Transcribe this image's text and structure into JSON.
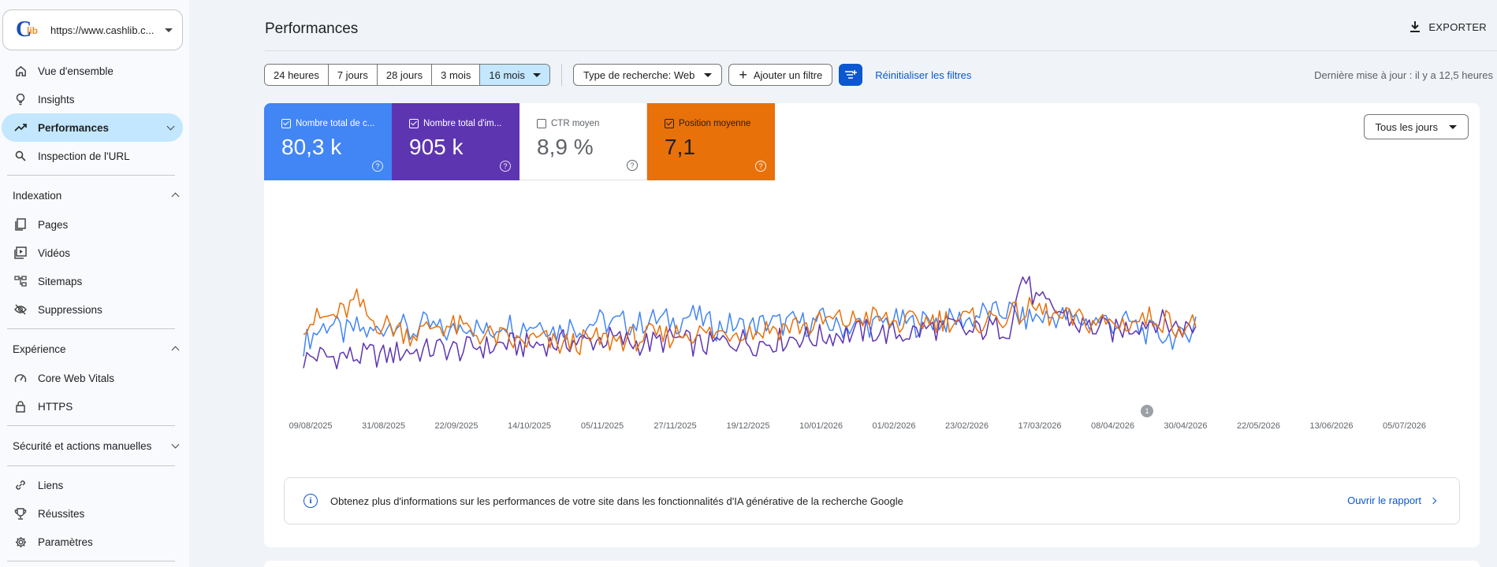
{
  "property": {
    "url": "https://www.cashlib.c...",
    "logo_letter": "C",
    "logo_small": "lib"
  },
  "sidebar": {
    "overview": "Vue d'ensemble",
    "insights": "Insights",
    "performances": "Performances",
    "url_inspection": "Inspection de l'URL",
    "indexing": {
      "title": "Indexation",
      "pages": "Pages",
      "videos": "Vidéos",
      "sitemaps": "Sitemaps",
      "removals": "Suppressions"
    },
    "experience": {
      "title": "Expérience",
      "cwv": "Core Web Vitals",
      "https": "HTTPS"
    },
    "security": "Sécurité et actions manuelles",
    "links": "Liens",
    "achievements": "Réussites",
    "settings": "Paramètres"
  },
  "header": {
    "title": "Performances",
    "export": "EXPORTER"
  },
  "filters": {
    "ranges": [
      "24 heures",
      "7 jours",
      "28 jours",
      "3 mois",
      "16 mois"
    ],
    "selected_range": "16 mois",
    "search_type": "Type de recherche: Web",
    "add_filter": "Ajouter un filtre",
    "reset": "Réinitialiser les filtres",
    "updated": "Dernière mise à jour : il y a 12,5 heures"
  },
  "metrics": [
    {
      "label": "Nombre total de c...",
      "value": "80,3 k",
      "checked": true,
      "color": "#4285f4"
    },
    {
      "label": "Nombre total d'im...",
      "value": "905 k",
      "checked": true,
      "color": "#5e35b1"
    },
    {
      "label": "CTR moyen",
      "value": "8,9 %",
      "checked": false,
      "color": "#ffffff"
    },
    {
      "label": "Position moyenne",
      "value": "7,1",
      "checked": true,
      "color": "#e8710a"
    }
  ],
  "help_glyph": "?",
  "days_dropdown": "Tous les jours",
  "chart_data": {
    "type": "line",
    "x_tick_labels": [
      "09/08/2025",
      "31/08/2025",
      "22/09/2025",
      "14/10/2025",
      "05/11/2025",
      "27/11/2025",
      "19/12/2025",
      "10/01/2026",
      "01/02/2026",
      "23/02/2026",
      "17/03/2026",
      "08/04/2026",
      "30/04/2026",
      "22/05/2026",
      "13/06/2026",
      "05/07/2026"
    ],
    "annotation": "1",
    "series": [
      {
        "color": "#4285f4",
        "values": [
          0.42,
          0.52,
          0.6,
          0.5,
          0.55,
          0.5,
          0.56,
          0.62,
          0.5,
          0.58,
          0.54,
          0.5,
          0.6,
          0.55,
          0.5,
          0.62,
          0.56,
          0.58,
          0.6,
          0.52,
          0.57,
          0.55,
          0.62,
          0.58,
          0.6,
          0.58,
          0.62,
          0.62,
          0.6,
          0.66,
          0.62,
          0.55,
          0.58,
          0.56,
          0.57,
          0.6,
          0.58,
          0.6,
          0.58,
          0.62,
          0.55,
          0.57,
          0.58,
          0.57,
          0.62,
          0.6,
          0.58,
          0.62,
          0.6,
          0.62,
          0.62,
          0.68,
          0.67,
          0.7,
          0.62,
          0.64,
          0.64,
          0.65,
          0.62,
          0.6,
          0.62,
          0.58,
          0.6,
          0.52,
          0.5,
          0.48,
          0.45,
          0.62
        ]
      },
      {
        "color": "#5e35b1",
        "values": [
          0.28,
          0.32,
          0.3,
          0.32,
          0.3,
          0.33,
          0.31,
          0.34,
          0.36,
          0.35,
          0.38,
          0.37,
          0.36,
          0.4,
          0.38,
          0.42,
          0.4,
          0.4,
          0.42,
          0.42,
          0.44,
          0.43,
          0.45,
          0.46,
          0.44,
          0.42,
          0.42,
          0.44,
          0.46,
          0.42,
          0.4,
          0.42,
          0.44,
          0.45,
          0.42,
          0.44,
          0.45,
          0.48,
          0.46,
          0.48,
          0.5,
          0.5,
          0.52,
          0.52,
          0.5,
          0.5,
          0.52,
          0.55,
          0.55,
          0.56,
          0.5,
          0.54,
          0.55,
          0.56,
          1.0,
          0.78,
          0.72,
          0.68,
          0.58,
          0.56,
          0.54,
          0.52,
          0.56,
          0.6,
          0.62,
          0.58,
          0.55,
          0.56
        ]
      },
      {
        "color": "#e8710a",
        "values": [
          0.6,
          0.62,
          0.64,
          0.68,
          0.78,
          0.62,
          0.58,
          0.55,
          0.5,
          0.52,
          0.58,
          0.56,
          0.55,
          0.5,
          0.48,
          0.46,
          0.42,
          0.44,
          0.45,
          0.4,
          0.42,
          0.43,
          0.45,
          0.44,
          0.46,
          0.46,
          0.48,
          0.47,
          0.5,
          0.52,
          0.5,
          0.5,
          0.52,
          0.54,
          0.52,
          0.55,
          0.55,
          0.58,
          0.56,
          0.6,
          0.62,
          0.6,
          0.64,
          0.64,
          0.6,
          0.58,
          0.6,
          0.62,
          0.62,
          0.62,
          0.62,
          0.6,
          0.64,
          0.65,
          0.68,
          0.72,
          0.66,
          0.62,
          0.62,
          0.6,
          0.6,
          0.58,
          0.6,
          0.62,
          0.64,
          0.6,
          0.56,
          0.58
        ]
      }
    ]
  },
  "info": {
    "icon": "i",
    "text": "Obtenez plus d'informations sur les performances de votre site dans les fonctionnalités d'IA générative de la recherche Google",
    "link": "Ouvrir le rapport"
  }
}
